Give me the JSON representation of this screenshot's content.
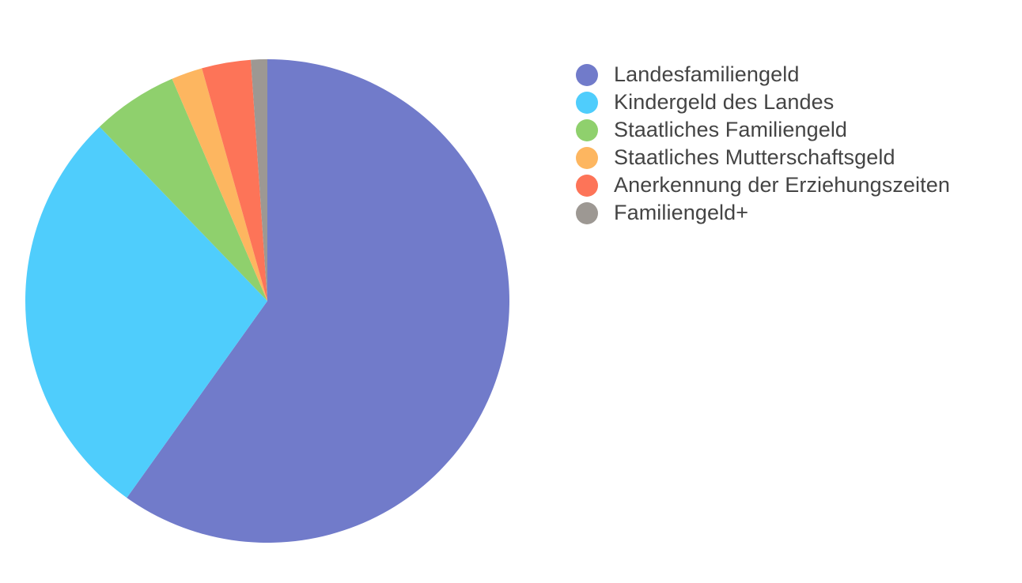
{
  "chart_data": {
    "type": "pie",
    "title": "",
    "legend_position": "right",
    "start_angle_deg": 0,
    "direction": "clockwise",
    "slices": [
      {
        "label": "Landesfamiliengeld",
        "value": 60.4,
        "color": "#717bca"
      },
      {
        "label": "Kindergeld des Landes",
        "value": 28.2,
        "color": "#4fcdfc"
      },
      {
        "label": "Staatliches Familiengeld",
        "value": 5.8,
        "color": "#8fd06d"
      },
      {
        "label": "Staatliches Mutterschaftsgeld",
        "value": 2.1,
        "color": "#fdb660"
      },
      {
        "label": "Anerkennung der Erziehungszeiten",
        "value": 3.3,
        "color": "#fd7458"
      },
      {
        "label": "Familiengeld+",
        "value": 1.1,
        "color": "#9d9893"
      }
    ]
  }
}
